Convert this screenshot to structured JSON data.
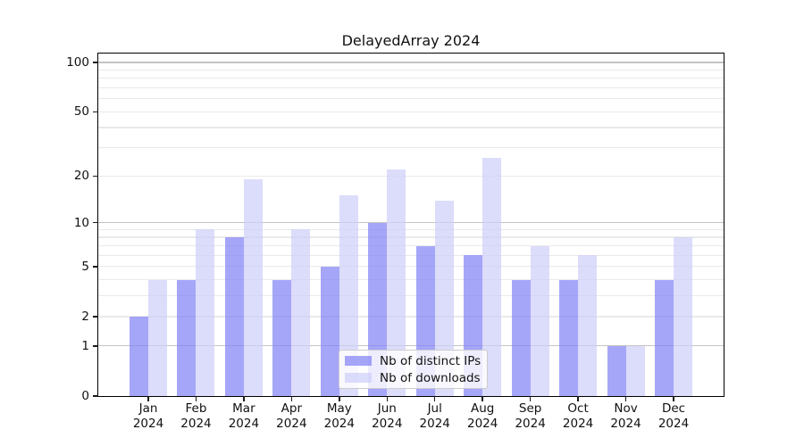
{
  "chart_data": {
    "type": "bar",
    "title": "DelayedArray 2024",
    "categories": [
      "Jan",
      "Feb",
      "Mar",
      "Apr",
      "May",
      "Jun",
      "Jul",
      "Aug",
      "Sep",
      "Oct",
      "Nov",
      "Dec"
    ],
    "x_tick_second_line": "2024",
    "series": [
      {
        "name": "Nb of distinct IPs",
        "color": "rgba(132,132,246,0.72)",
        "values": [
          2,
          4,
          8,
          4,
          5,
          10,
          7,
          6,
          4,
          4,
          1,
          4
        ]
      },
      {
        "name": "Nb of downloads",
        "color": "rgba(206,206,249,0.72)",
        "values": [
          4,
          9,
          19,
          9,
          15,
          22,
          14,
          26,
          7,
          6,
          1,
          8
        ]
      }
    ],
    "y_axis": {
      "scale": "log1p",
      "range": [
        0,
        100
      ],
      "tick_values": [
        0,
        1,
        2,
        5,
        10,
        20,
        50,
        100
      ],
      "tick_labels": [
        "0",
        "1",
        "2",
        "5",
        "10",
        "20",
        "50",
        "100"
      ]
    },
    "gridlines": {
      "major": [
        1,
        10,
        100
      ],
      "minor": [
        2,
        3,
        4,
        5,
        6,
        7,
        8,
        9,
        20,
        30,
        40,
        50,
        60,
        70,
        80,
        90
      ],
      "major_color": "#c4c4c4",
      "minor_color": "#e9e9e9"
    },
    "legend": {
      "position": "lower center"
    }
  }
}
